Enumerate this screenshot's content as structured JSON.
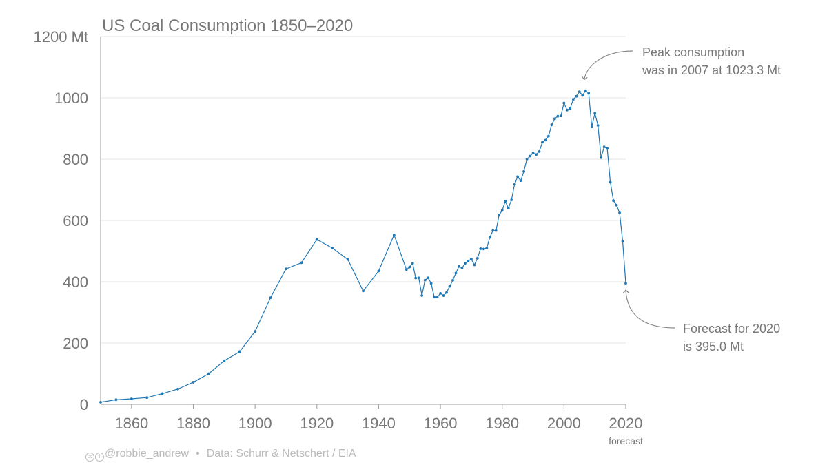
{
  "chart_data": {
    "type": "line",
    "title": "US Coal Consumption 1850–2020",
    "xlabel": "",
    "ylabel": "",
    "xlim": [
      1850,
      2020
    ],
    "ylim": [
      0,
      1200
    ],
    "x_ticks": [
      1860,
      1880,
      1900,
      1920,
      1940,
      1960,
      1980,
      2000,
      2020
    ],
    "y_ticks": [
      0,
      200,
      400,
      600,
      800,
      1000,
      1200
    ],
    "y_tick_labels": [
      "0",
      "200",
      "400",
      "600",
      "800",
      "1000",
      "1200 Mt"
    ],
    "x_tick_sublabel": "forecast",
    "grid": "horizontal",
    "color": "#1f77b4",
    "series": [
      {
        "x": [
          1850,
          1855,
          1860,
          1865,
          1870,
          1875,
          1880,
          1885,
          1890,
          1895,
          1900,
          1905,
          1910,
          1915,
          1920,
          1925,
          1930,
          1935,
          1940,
          1945,
          1949,
          1950,
          1951,
          1952,
          1953,
          1954,
          1955,
          1956,
          1957,
          1958,
          1959,
          1960,
          1961,
          1962,
          1963,
          1964,
          1965,
          1966,
          1967,
          1968,
          1969,
          1970,
          1971,
          1972,
          1973,
          1974,
          1975,
          1976,
          1977,
          1978,
          1979,
          1980,
          1981,
          1982,
          1983,
          1984,
          1985,
          1986,
          1987,
          1988,
          1989,
          1990,
          1991,
          1992,
          1993,
          1994,
          1995,
          1996,
          1997,
          1998,
          1999,
          2000,
          2001,
          2002,
          2003,
          2004,
          2005,
          2006,
          2007,
          2008,
          2009,
          2010,
          2011,
          2012,
          2013,
          2014,
          2015,
          2016,
          2017,
          2018,
          2019,
          2020
        ],
        "y": [
          7,
          15,
          18,
          22,
          35,
          50,
          72,
          100,
          142,
          172,
          238,
          348,
          442,
          462,
          538,
          510,
          473,
          370,
          435,
          553,
          440,
          448,
          460,
          412,
          413,
          355,
          405,
          413,
          395,
          350,
          350,
          362,
          355,
          365,
          385,
          405,
          428,
          450,
          445,
          460,
          468,
          474,
          455,
          477,
          508,
          507,
          510,
          545,
          567,
          567,
          618,
          633,
          663,
          640,
          667,
          718,
          743,
          730,
          760,
          800,
          810,
          820,
          815,
          825,
          855,
          862,
          875,
          912,
          932,
          940,
          941,
          983,
          960,
          965,
          995,
          1005,
          1020,
          1008,
          1023.3,
          1015,
          905,
          950,
          910,
          805,
          840,
          835,
          725,
          665,
          650,
          625,
          532,
          395
        ]
      }
    ],
    "annotations": [
      {
        "id": "peak",
        "line1": "Peak consumption",
        "line2": "was in 2007 at 1023.3 Mt",
        "year": 2007,
        "value": 1023.3
      },
      {
        "id": "forecast",
        "line1": "Forecast for 2020",
        "line2": "is 395.0 Mt",
        "year": 2020,
        "value": 395.0
      }
    ]
  },
  "footer": {
    "icon_cc": "creative-commons-icon",
    "icon_by": "attribution-icon",
    "author": "@robbie_andrew",
    "separator": "•",
    "source": "Data: Schurr & Netschert / EIA"
  }
}
